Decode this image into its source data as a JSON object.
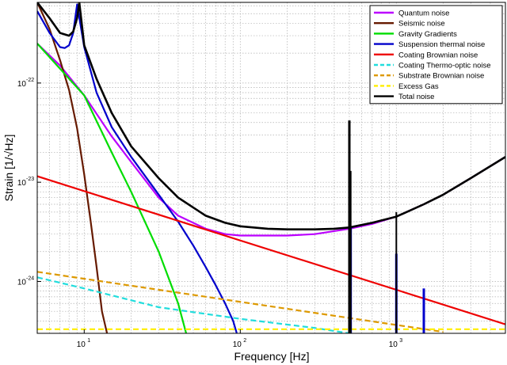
{
  "chart_data": {
    "type": "line",
    "title": "",
    "xlabel": "Frequency [Hz]",
    "ylabel": "Strain [1/√Hz]",
    "xscale": "log",
    "yscale": "log",
    "xlim": [
      5,
      5000
    ],
    "ylim": [
      3e-25,
      6.5e-22
    ],
    "x_ticks": [
      {
        "value": 10,
        "base": "10",
        "exp": "1"
      },
      {
        "value": 100,
        "base": "10",
        "exp": "2"
      },
      {
        "value": 1000,
        "base": "10",
        "exp": "3"
      }
    ],
    "y_ticks": [
      {
        "value": 1e-24,
        "base": "10",
        "exp": "-24"
      },
      {
        "value": 1e-23,
        "base": "10",
        "exp": "-23"
      },
      {
        "value": 1e-22,
        "base": "10",
        "exp": "-22"
      }
    ],
    "grid": true,
    "legend_position": "top-right",
    "series": [
      {
        "name": "Quantum noise",
        "color": "#bb00ff",
        "dash": "solid",
        "x": [
          5,
          7,
          10,
          15,
          20,
          30,
          40,
          60,
          80,
          100,
          150,
          200,
          300,
          500,
          700,
          1000,
          1500,
          2000,
          3000,
          5000
        ],
        "y": [
          2.5e-22,
          1.5e-22,
          7.5e-23,
          2.9e-23,
          1.6e-23,
          7e-24,
          4.6e-24,
          3.4e-24,
          3e-24,
          2.9e-24,
          2.9e-24,
          2.9e-24,
          3e-24,
          3.4e-24,
          3.8e-24,
          4.5e-24,
          6e-24,
          7.5e-24,
          1.1e-23,
          1.8e-23
        ]
      },
      {
        "name": "Seismic noise",
        "color": "#661a00",
        "dash": "solid",
        "x": [
          5,
          6,
          7,
          8,
          9,
          10,
          11,
          12,
          13,
          14
        ],
        "y": [
          6.5e-22,
          3.5e-22,
          1.7e-22,
          8.5e-23,
          3.5e-23,
          1.2e-23,
          4e-24,
          1.4e-24,
          5e-25,
          3e-25
        ]
      },
      {
        "name": "Gravity Gradients",
        "color": "#00dd00",
        "dash": "solid",
        "x": [
          5,
          10,
          15,
          20,
          30,
          40,
          45
        ],
        "y": [
          2.5e-22,
          7.5e-23,
          2e-23,
          8e-24,
          2e-24,
          6e-25,
          3e-25
        ]
      },
      {
        "name": "Suspension thermal noise",
        "color": "#0000cc",
        "dash": "solid",
        "x": [
          5,
          6,
          7,
          7.5,
          8,
          8.5,
          9,
          10,
          12,
          15,
          20,
          30,
          40,
          50,
          60,
          70,
          80,
          90,
          95
        ],
        "y": [
          5.3e-22,
          3.2e-22,
          2.3e-22,
          2.25e-22,
          2.4e-22,
          3.2e-22,
          6.2e-22,
          2.3e-22,
          8e-23,
          3.6e-23,
          1.8e-23,
          7.5e-24,
          4e-24,
          2.3e-24,
          1.4e-24,
          9e-25,
          6e-25,
          4e-25,
          3e-25
        ]
      },
      {
        "name": "Coating Brownian noise",
        "color": "#ee0000",
        "dash": "solid",
        "x": [
          5,
          5000
        ],
        "y": [
          1.15e-23,
          3.7e-25
        ]
      },
      {
        "name": "Coating Thermo-optic noise",
        "color": "#22dddd",
        "dash": "dashed",
        "x": [
          5,
          10,
          30,
          100,
          300,
          500
        ],
        "y": [
          1.1e-24,
          8.5e-25,
          5.5e-25,
          4.2e-25,
          3.4e-25,
          3e-25
        ]
      },
      {
        "name": "Substrate Brownian noise",
        "color": "#dd9900",
        "dash": "dashed",
        "x": [
          5,
          2000
        ],
        "y": [
          1.25e-24,
          3.1e-25
        ]
      },
      {
        "name": "Excess Gas",
        "color": "#ffee00",
        "dash": "dashed",
        "x": [
          5,
          5000
        ],
        "y": [
          3.3e-25,
          3.3e-25
        ]
      },
      {
        "name": "Total noise",
        "color": "#000000",
        "dash": "solid",
        "x": [
          5,
          6,
          7,
          8,
          8.5,
          9,
          9.3,
          10,
          12,
          15,
          20,
          30,
          40,
          60,
          80,
          100,
          150,
          200,
          300,
          400,
          500,
          700,
          1000,
          1500,
          2000,
          3000,
          5000
        ],
        "y": [
          6.5e-22,
          4.5e-22,
          3.2e-22,
          3e-22,
          3.3e-22,
          4.5e-22,
          6.5e-22,
          2.4e-22,
          1.1e-22,
          5e-23,
          2.3e-23,
          1.1e-23,
          7e-24,
          4.6e-24,
          3.9e-24,
          3.6e-24,
          3.4e-24,
          3.35e-24,
          3.35e-24,
          3.4e-24,
          3.5e-24,
          3.9e-24,
          4.5e-24,
          6e-24,
          7.5e-24,
          1.1e-23,
          1.8e-23
        ]
      }
    ],
    "spikes": [
      {
        "series": "Suspension thermal noise",
        "x": 510,
        "y_top": 3.5e-24,
        "width": 3
      },
      {
        "series": "Suspension thermal noise",
        "x": 1000,
        "y_top": 1.9e-24,
        "width": 3
      },
      {
        "series": "Suspension thermal noise",
        "x": 1500,
        "y_top": 8.5e-25,
        "width": 3
      },
      {
        "series": "Total noise",
        "x": 500,
        "y_top": 4.2e-23,
        "width": 3
      },
      {
        "series": "Total noise",
        "x": 510,
        "y_top": 1.3e-23,
        "width": 2
      },
      {
        "series": "Total noise",
        "x": 1000,
        "y_top": 5e-24,
        "width": 2
      }
    ]
  }
}
